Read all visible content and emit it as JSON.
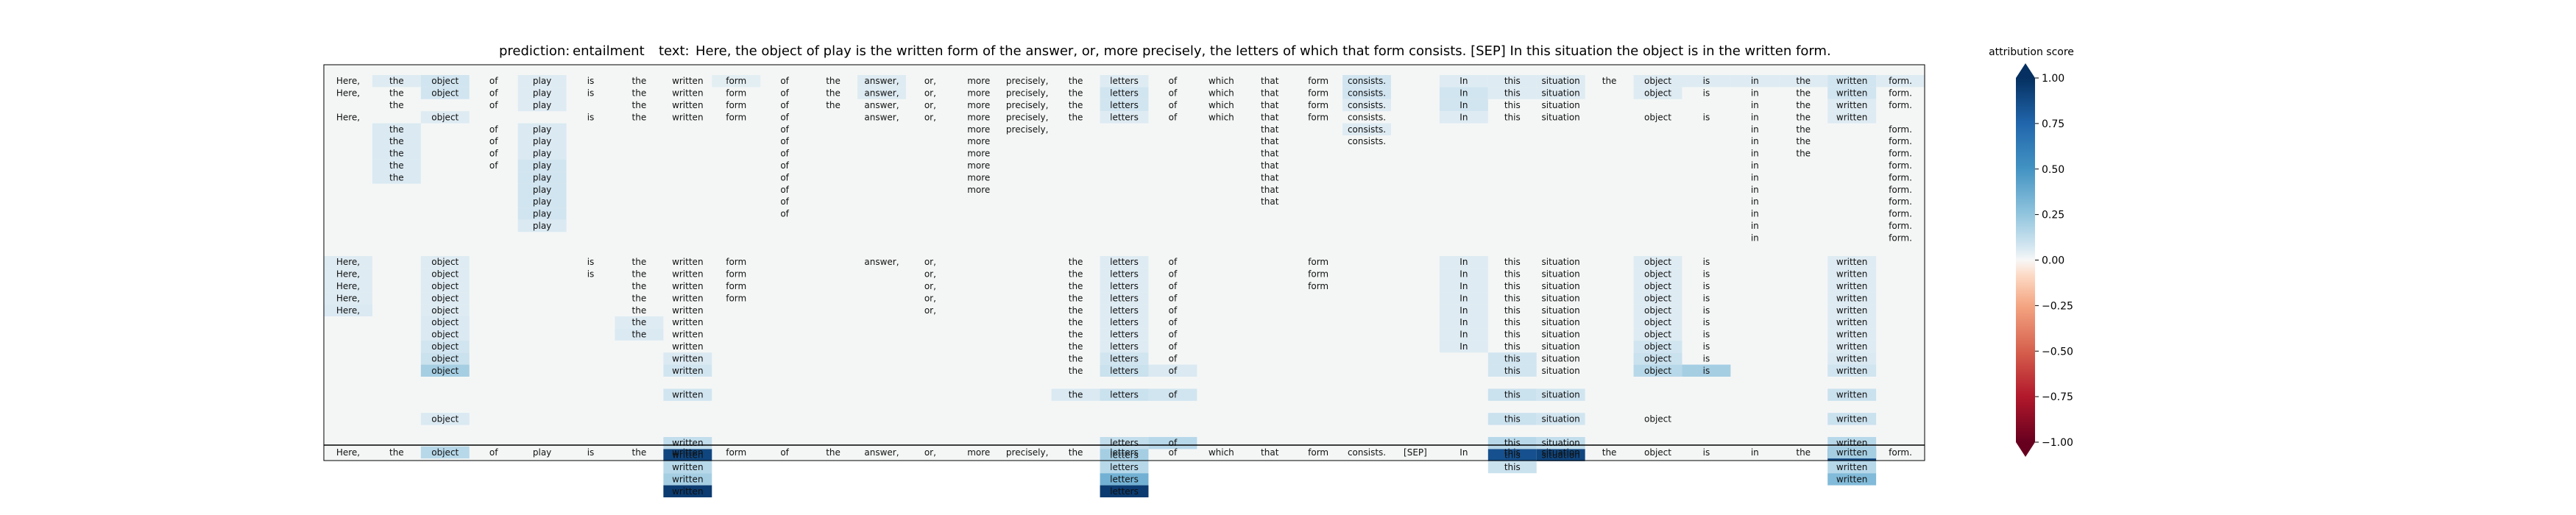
{
  "chart_data": {
    "type": "heatmap",
    "title_prediction_label": "prediction:",
    "title_prediction_value": "entailment",
    "title_text_label": "text:",
    "title_text_value": "Here, the object of play is the written form of the answer, or, more precisely, the letters of which that form consists. [SEP] In this situation the object is in the written form.",
    "colorbar": {
      "label": "attribution score",
      "min": -1.0,
      "max": 1.0,
      "ticks": [
        "1.00",
        "0.75",
        "0.50",
        "0.25",
        "0.00",
        "−0.25",
        "−0.50",
        "−0.75",
        "−1.00"
      ],
      "tick_values": [
        1.0,
        0.75,
        0.5,
        0.25,
        0.0,
        -0.25,
        -0.5,
        -0.75,
        -1.0
      ],
      "colormap": "RdBu"
    },
    "tokens": [
      "Here,",
      "the",
      "object",
      "of",
      "play",
      "is",
      "the",
      "written",
      "form",
      "of",
      "the",
      "answer,",
      "or,",
      "more",
      "precisely,",
      "the",
      "letters",
      "of",
      "which",
      "that",
      "form",
      "consists.",
      "[SEP]",
      "In",
      "this",
      "situation",
      "the",
      "object",
      "is",
      "in",
      "the",
      "written",
      "form."
    ],
    "rows": [
      {
        "present": [
          0,
          1,
          2,
          3,
          4,
          5,
          6,
          7,
          8,
          9,
          10,
          11,
          12,
          13,
          14,
          15,
          16,
          17,
          18,
          19,
          20,
          21,
          23,
          24,
          25,
          26,
          27,
          28,
          29,
          30,
          31,
          32
        ],
        "vals": {
          "1": 0.05,
          "2": 0.08,
          "4": 0.05,
          "8": 0.04,
          "11": 0.05,
          "16": 0.05,
          "21": 0.08,
          "23": 0.05,
          "24": 0.05,
          "25": 0.05,
          "27": 0.05,
          "28": 0.05,
          "29": 0.05,
          "30": 0.05,
          "31": 0.08,
          "32": 0.05
        }
      },
      {
        "present": [
          0,
          1,
          2,
          3,
          4,
          5,
          6,
          7,
          8,
          9,
          10,
          11,
          12,
          13,
          14,
          15,
          16,
          17,
          18,
          19,
          20,
          21,
          23,
          24,
          25,
          27,
          28,
          29,
          30,
          31,
          32
        ],
        "vals": {
          "2": 0.08,
          "4": 0.05,
          "11": 0.05,
          "16": 0.08,
          "21": 0.08,
          "23": 0.08,
          "24": 0.05,
          "25": 0.05,
          "27": 0.05,
          "31": 0.08
        }
      },
      {
        "present": [
          1,
          3,
          4,
          6,
          7,
          8,
          9,
          10,
          11,
          12,
          13,
          14,
          15,
          16,
          17,
          18,
          19,
          20,
          21,
          23,
          24,
          25,
          29,
          30,
          31,
          32
        ],
        "vals": {
          "4": 0.05,
          "16": 0.08,
          "21": 0.05,
          "23": 0.08,
          "31": 0.05
        }
      },
      {
        "present": [
          0,
          2,
          5,
          6,
          7,
          8,
          9,
          11,
          12,
          13,
          14,
          15,
          16,
          17,
          18,
          19,
          20,
          21,
          23,
          24,
          25,
          27,
          28,
          29,
          30,
          31
        ],
        "vals": {
          "2": 0.05,
          "16": 0.05,
          "23": 0.05,
          "31": 0.05
        }
      },
      {
        "present": [
          1,
          3,
          4,
          9,
          13,
          14,
          19,
          21,
          29,
          30,
          32
        ],
        "vals": {
          "1": 0.06,
          "4": 0.06,
          "21": 0.05
        }
      },
      {
        "present": [
          1,
          3,
          4,
          9,
          13,
          19,
          21,
          29,
          30,
          32
        ],
        "vals": {
          "1": 0.06,
          "4": 0.06
        }
      },
      {
        "present": [
          1,
          3,
          4,
          9,
          13,
          19,
          29,
          30,
          32
        ],
        "vals": {
          "1": 0.06,
          "4": 0.06
        }
      },
      {
        "present": [
          1,
          3,
          4,
          9,
          13,
          19,
          29,
          32
        ],
        "vals": {
          "1": 0.06,
          "4": 0.08
        }
      },
      {
        "present": [
          1,
          4,
          9,
          13,
          19,
          29,
          32
        ],
        "vals": {
          "1": 0.06,
          "4": 0.08
        }
      },
      {
        "present": [
          4,
          9,
          13,
          19,
          29,
          32
        ],
        "vals": {
          "4": 0.08
        }
      },
      {
        "present": [
          4,
          9,
          19,
          29,
          32
        ],
        "vals": {
          "4": 0.08
        }
      },
      {
        "present": [
          4,
          9,
          29,
          32
        ],
        "vals": {
          "4": 0.08
        }
      },
      {
        "present": [
          4,
          29,
          32
        ],
        "vals": {
          "4": 0.06
        }
      },
      {
        "present": [
          29,
          32
        ],
        "vals": {}
      },
      {
        "present": [],
        "vals": {}
      },
      {
        "present": [
          0,
          2,
          5,
          6,
          7,
          8,
          11,
          12,
          15,
          16,
          17,
          20,
          23,
          24,
          25,
          27,
          28,
          31
        ],
        "vals": {
          "0": 0.05,
          "2": 0.05,
          "16": 0.05,
          "23": 0.05,
          "27": 0.05,
          "31": 0.05
        }
      },
      {
        "present": [
          0,
          2,
          5,
          6,
          7,
          8,
          12,
          15,
          16,
          17,
          20,
          23,
          24,
          25,
          27,
          28,
          31
        ],
        "vals": {
          "0": 0.05,
          "2": 0.05,
          "16": 0.05,
          "23": 0.05,
          "27": 0.05,
          "31": 0.05
        }
      },
      {
        "present": [
          0,
          2,
          6,
          7,
          8,
          12,
          15,
          16,
          17,
          20,
          23,
          24,
          25,
          27,
          28,
          31
        ],
        "vals": {
          "0": 0.05,
          "2": 0.05,
          "16": 0.05,
          "23": 0.05,
          "27": 0.05,
          "31": 0.05
        }
      },
      {
        "present": [
          0,
          2,
          6,
          7,
          8,
          12,
          15,
          16,
          17,
          23,
          24,
          25,
          27,
          28,
          31
        ],
        "vals": {
          "0": 0.05,
          "2": 0.05,
          "16": 0.05,
          "23": 0.05,
          "27": 0.05,
          "31": 0.05
        }
      },
      {
        "present": [
          0,
          2,
          6,
          7,
          12,
          15,
          16,
          17,
          23,
          24,
          25,
          27,
          28,
          31
        ],
        "vals": {
          "0": 0.06,
          "2": 0.05,
          "16": 0.05,
          "23": 0.05,
          "27": 0.05,
          "31": 0.05
        }
      },
      {
        "present": [
          2,
          6,
          7,
          15,
          16,
          17,
          23,
          24,
          25,
          27,
          28,
          31
        ],
        "vals": {
          "2": 0.06,
          "6": 0.05,
          "16": 0.05,
          "23": 0.05,
          "27": 0.05,
          "31": 0.05
        }
      },
      {
        "present": [
          2,
          6,
          7,
          15,
          16,
          17,
          23,
          24,
          25,
          27,
          28,
          31
        ],
        "vals": {
          "2": 0.06,
          "6": 0.06,
          "16": 0.05,
          "23": 0.05,
          "27": 0.05,
          "31": 0.05
        }
      },
      {
        "present": [
          2,
          7,
          15,
          16,
          17,
          23,
          24,
          25,
          27,
          28,
          31
        ],
        "vals": {
          "2": 0.08,
          "16": 0.05,
          "23": 0.05,
          "27": 0.08,
          "31": 0.05
        }
      },
      {
        "present": [
          2,
          7,
          15,
          16,
          17,
          24,
          25,
          27,
          28,
          31
        ],
        "vals": {
          "2": 0.1,
          "7": 0.06,
          "16": 0.08,
          "24": 0.08,
          "27": 0.1,
          "31": 0.06
        }
      },
      {
        "present": [
          2,
          7,
          15,
          16,
          17,
          24,
          25,
          27,
          28,
          31
        ],
        "vals": {
          "2": 0.2,
          "7": 0.08,
          "16": 0.1,
          "17": 0.06,
          "24": 0.08,
          "27": 0.15,
          "28": 0.2,
          "31": 0.08
        }
      },
      {
        "present": [],
        "vals": {}
      },
      {
        "present": [
          7,
          15,
          16,
          17,
          24,
          25,
          31
        ],
        "vals": {
          "7": 0.08,
          "15": 0.06,
          "16": 0.1,
          "17": 0.08,
          "24": 0.1,
          "25": 0.08,
          "31": 0.1
        }
      },
      {
        "present": [],
        "vals": {}
      },
      {
        "present": [
          2,
          24,
          25,
          27,
          31
        ],
        "vals": {
          "2": 0.06,
          "24": 0.1,
          "25": 0.08,
          "31": 0.1
        }
      },
      {
        "present": [],
        "vals": {}
      },
      {
        "present": [
          7,
          16,
          17,
          24,
          25,
          31
        ],
        "vals": {
          "7": 0.12,
          "16": 0.12,
          "17": 0.15,
          "24": 0.15,
          "25": 0.12,
          "31": 0.15
        }
      },
      {
        "present": [
          7,
          16,
          24,
          25,
          31
        ],
        "vals": {
          "7": 0.9,
          "16": 0.2,
          "24": 0.85,
          "25": 0.9,
          "31": 0.9
        }
      },
      {
        "present": [
          7,
          16,
          24,
          31
        ],
        "vals": {
          "7": 0.15,
          "16": 0.15,
          "24": 0.1,
          "31": 0.15
        }
      },
      {
        "present": [
          7,
          16,
          31
        ],
        "vals": {
          "7": 0.2,
          "16": 0.35,
          "31": 0.3
        }
      },
      {
        "present": [
          7,
          16
        ],
        "vals": {
          "7": 0.95,
          "16": 0.95
        }
      }
    ],
    "reference_row": {
      "tokens_all": true,
      "vals": {
        "2": 0.15,
        "31": 0.2
      }
    }
  }
}
